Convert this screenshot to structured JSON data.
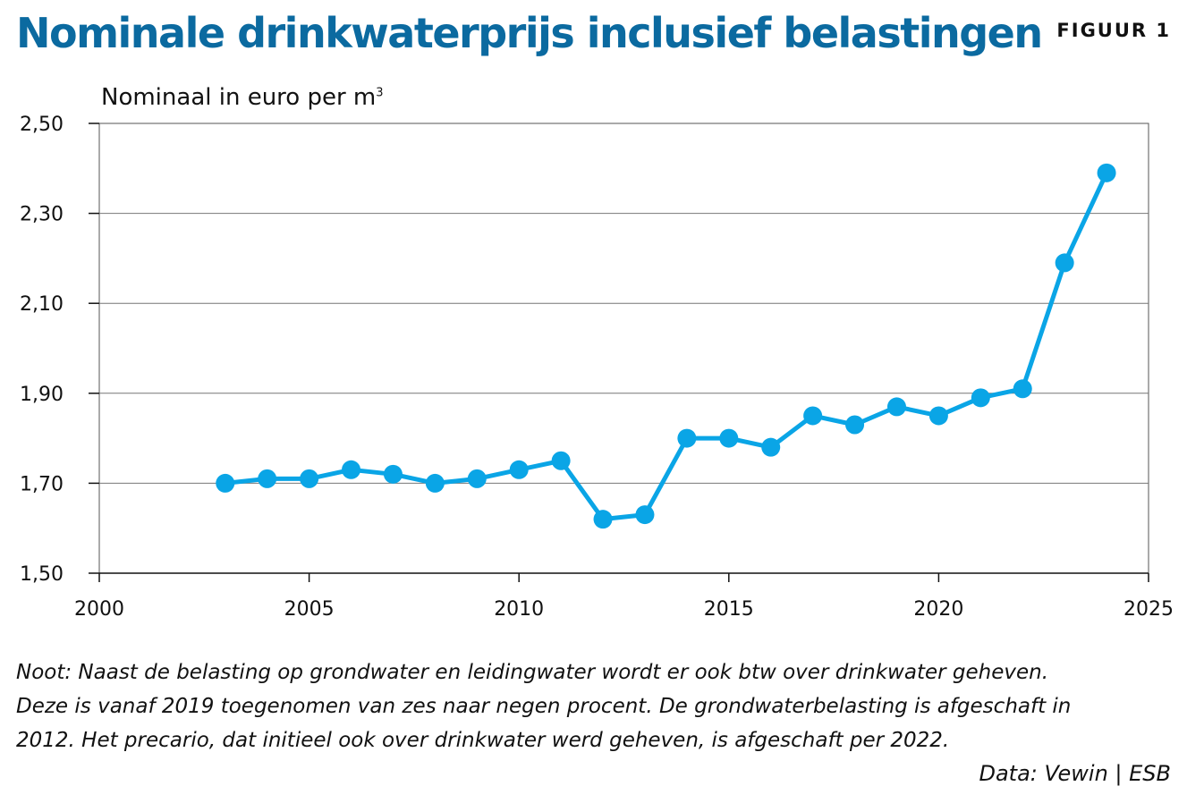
{
  "header": {
    "title": "Nominale drinkwaterprijs inclusief belastingen",
    "figure_label": "FIGUUR 1"
  },
  "chart_data": {
    "type": "line",
    "title": "Nominale drinkwaterprijs inclusief belastingen",
    "ylabel": "Nominaal in euro per m",
    "ylabel_superscript": "3",
    "xlabel": "",
    "xlim": [
      2000,
      2025
    ],
    "ylim": [
      1.5,
      2.5
    ],
    "grid": true,
    "x_ticks": [
      2000,
      2005,
      2010,
      2015,
      2020,
      2025
    ],
    "x_tick_labels": [
      "2000",
      "2005",
      "2010",
      "2015",
      "2020",
      "2025"
    ],
    "y_ticks": [
      1.5,
      1.7,
      1.9,
      2.1,
      2.3,
      2.5
    ],
    "y_tick_labels": [
      "1,50",
      "1,70",
      "1,90",
      "2,10",
      "2,30",
      "2,50"
    ],
    "color": "#0aa5e6",
    "series": [
      {
        "name": "Drinkwaterprijs",
        "x": [
          2003,
          2004,
          2005,
          2006,
          2007,
          2008,
          2009,
          2010,
          2011,
          2012,
          2013,
          2014,
          2015,
          2016,
          2017,
          2018,
          2019,
          2020,
          2021,
          2022,
          2023,
          2024
        ],
        "values": [
          1.7,
          1.71,
          1.71,
          1.73,
          1.72,
          1.7,
          1.71,
          1.73,
          1.75,
          1.62,
          1.63,
          1.8,
          1.8,
          1.78,
          1.85,
          1.83,
          1.87,
          1.85,
          1.89,
          1.91,
          2.19,
          2.39
        ]
      }
    ]
  },
  "note": {
    "lines": [
      "Noot: Naast de belasting op grondwater en leidingwater wordt er ook btw over drinkwater geheven.",
      "Deze is vanaf 2019 toegenomen van zes naar negen procent. De grondwaterbelasting is afgeschaft in",
      "2012. Het precario, dat initieel ook over drinkwater werd geheven, is afgeschaft per 2022."
    ]
  },
  "source": "Data: Vewin | ESB"
}
